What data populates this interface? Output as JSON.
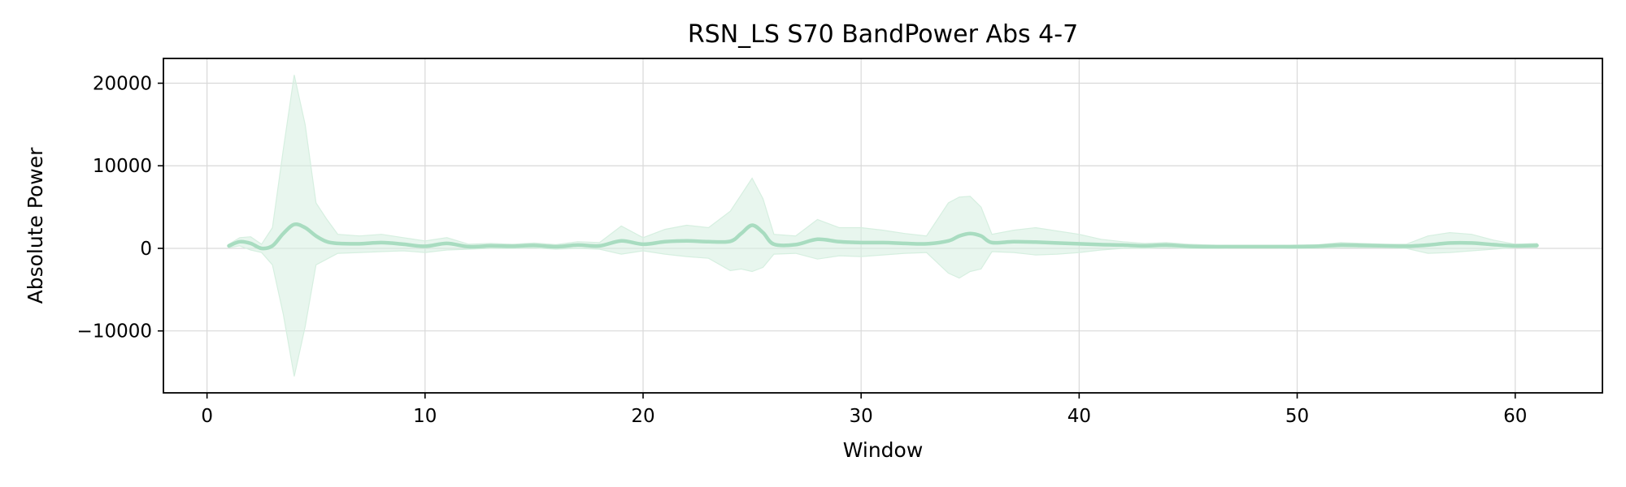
{
  "chart_data": {
    "type": "line",
    "title": "RSN_LS S70 BandPower Abs 4-7",
    "xlabel": "Window",
    "ylabel": "Absolute Power",
    "xlim": [
      -2,
      64
    ],
    "ylim": [
      -17500,
      23000
    ],
    "xticks": [
      0,
      10,
      20,
      30,
      40,
      50,
      60
    ],
    "xtick_labels": [
      "0",
      "10",
      "20",
      "30",
      "40",
      "50",
      "60"
    ],
    "yticks": [
      -10000,
      0,
      10000,
      20000
    ],
    "ytick_labels": [
      "−10000",
      "0",
      "10000",
      "20000"
    ],
    "grid": true,
    "legend": "none",
    "colors": {
      "line": "#a8dcc0",
      "band": "#d6efe0"
    },
    "series": [
      {
        "x": [
          1,
          1.5,
          2,
          2.5,
          3,
          3.5,
          4,
          4.5,
          5,
          5.5,
          6,
          7,
          8,
          9,
          10,
          11,
          12,
          13,
          14,
          15,
          16,
          17,
          18,
          19,
          20,
          21,
          22,
          23,
          24,
          24.5,
          25,
          25.5,
          26,
          27,
          28,
          29,
          30,
          31,
          32,
          33,
          34,
          34.5,
          35,
          35.5,
          36,
          37,
          38,
          39,
          40,
          41,
          42,
          43,
          44,
          45,
          46,
          47,
          48,
          49,
          50,
          51,
          52,
          53,
          54,
          55,
          56,
          57,
          58,
          59,
          60,
          61
        ],
        "values": [
          300,
          800,
          600,
          0,
          300,
          1800,
          2900,
          2500,
          1500,
          800,
          600,
          550,
          700,
          500,
          250,
          600,
          200,
          300,
          250,
          350,
          200,
          400,
          300,
          900,
          500,
          800,
          900,
          800,
          850,
          1800,
          2800,
          1900,
          500,
          450,
          1100,
          800,
          700,
          700,
          600,
          550,
          900,
          1500,
          1800,
          1500,
          700,
          800,
          750,
          650,
          550,
          450,
          400,
          300,
          400,
          250,
          200,
          200,
          200,
          200,
          200,
          250,
          400,
          350,
          300,
          250,
          400,
          650,
          650,
          450,
          300,
          350
        ],
        "upper": [
          500,
          1300,
          1400,
          500,
          2500,
          12000,
          21000,
          15000,
          5500,
          3500,
          1700,
          1500,
          1700,
          1300,
          900,
          1300,
          500,
          600,
          500,
          650,
          450,
          800,
          700,
          2700,
          1300,
          2300,
          2800,
          2500,
          4500,
          6500,
          8500,
          6000,
          1700,
          1500,
          3500,
          2500,
          2500,
          2200,
          1800,
          1500,
          5500,
          6200,
          6300,
          5000,
          1700,
          2200,
          2500,
          2100,
          1700,
          1100,
          800,
          600,
          700,
          500,
          400,
          350,
          350,
          350,
          400,
          450,
          700,
          600,
          500,
          500,
          1500,
          1900,
          1700,
          1000,
          500,
          600
        ],
        "lower": [
          100,
          300,
          -200,
          -500,
          -2000,
          -8000,
          -15500,
          -9500,
          -2000,
          -1300,
          -600,
          -500,
          -400,
          -300,
          -500,
          -200,
          -100,
          0,
          0,
          50,
          -100,
          0,
          -100,
          -700,
          -300,
          -700,
          -1000,
          -1200,
          -2700,
          -2500,
          -2800,
          -2300,
          -700,
          -600,
          -1300,
          -900,
          -1000,
          -800,
          -600,
          -500,
          -3000,
          -3600,
          -2800,
          -2500,
          -400,
          -500,
          -800,
          -700,
          -500,
          -200,
          0,
          0,
          100,
          0,
          0,
          50,
          50,
          50,
          0,
          50,
          100,
          100,
          100,
          0,
          -600,
          -500,
          -300,
          -100,
          100,
          100
        ]
      }
    ]
  }
}
